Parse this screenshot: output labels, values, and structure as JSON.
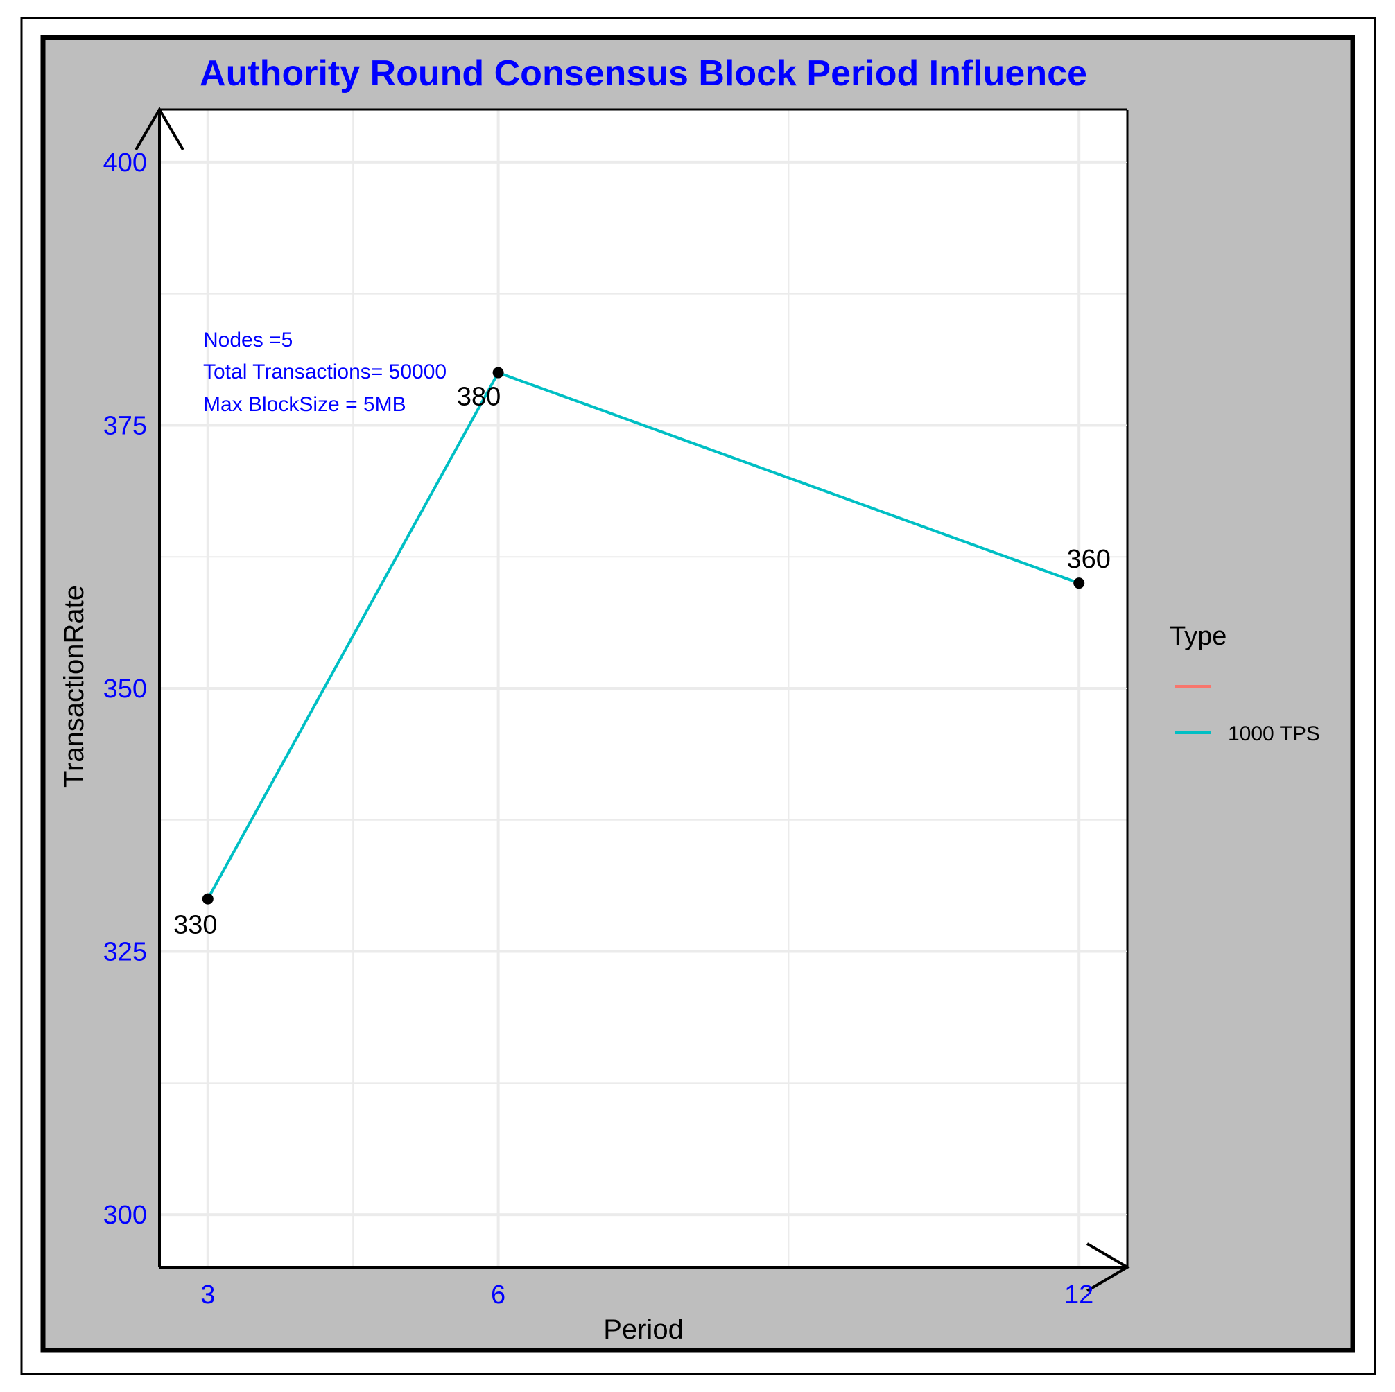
{
  "chart_data": {
    "type": "line",
    "title": "Authority Round Consensus Block Period Influence",
    "xlabel": "Period",
    "ylabel": "TransactionRate",
    "x": [
      3,
      6,
      12
    ],
    "x_ticks": [
      "3",
      "6",
      "12"
    ],
    "y_ticks": [
      "300",
      "325",
      "350",
      "375",
      "400"
    ],
    "xlim": [
      2.5,
      12.5
    ],
    "ylim": [
      295,
      405
    ],
    "grid": true,
    "series": [
      {
        "name": "1000 TPS",
        "color": "#00bfc4",
        "values": [
          330,
          380,
          360
        ],
        "labels": [
          "330",
          "380",
          "360"
        ]
      }
    ],
    "annotations": [
      "Nodes =5",
      "Total Transactions= 50000",
      "Max BlockSize = 5MB"
    ],
    "legend": {
      "title": "Type",
      "placement": "right",
      "entries": [
        {
          "label": "",
          "color": "#f8766d"
        },
        {
          "label": "1000 TPS",
          "color": "#00bfc4"
        }
      ]
    },
    "colors": {
      "panel_background": "#bebebe",
      "plot_background": "#ffffff",
      "title": "#0000ff",
      "ticks": "#0000ff",
      "point": "#000000"
    }
  }
}
